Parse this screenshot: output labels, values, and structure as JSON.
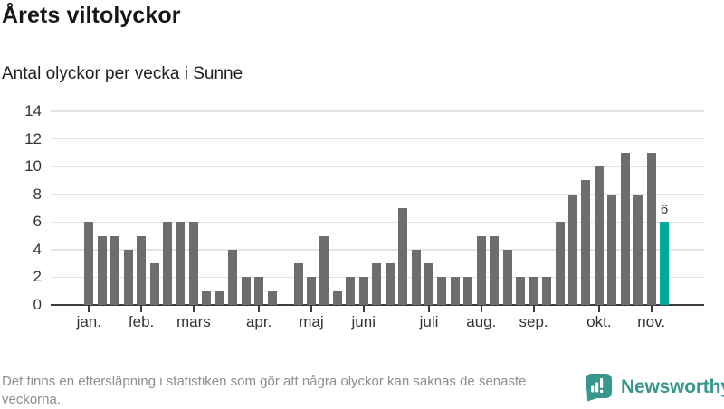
{
  "header": {
    "title": "Årets viltolyckor",
    "subtitle": "Antal olyckor per vecka i Sunne"
  },
  "footer": {
    "note": "Det finns en eftersläpning i statistiken som gör att några olyckor kan saknas de senaste veckorna.",
    "brand": "Newsworthy"
  },
  "colors": {
    "bar": "#6d6d6d",
    "highlight": "#00a79c",
    "brand_teal": "#38978d",
    "gridline": "#e4e4e4",
    "axis": "#3c3c3c",
    "footer_text": "#8d8d8d"
  },
  "chart_data": {
    "type": "bar",
    "title": "Årets viltolyckor",
    "subtitle": "Antal olyckor per vecka i Sunne",
    "x_description": "weeks of the year, January through November",
    "values": [
      6,
      5,
      5,
      4,
      5,
      3,
      6,
      6,
      6,
      1,
      1,
      4,
      2,
      2,
      1,
      0,
      3,
      2,
      5,
      1,
      2,
      2,
      3,
      3,
      7,
      4,
      3,
      2,
      2,
      2,
      5,
      5,
      4,
      2,
      2,
      2,
      6,
      8,
      9,
      10,
      8,
      11,
      8,
      11,
      6
    ],
    "month_ticks": [
      {
        "label": "jan.",
        "index": 0
      },
      {
        "label": "feb.",
        "index": 4
      },
      {
        "label": "mars",
        "index": 8
      },
      {
        "label": "apr.",
        "index": 13
      },
      {
        "label": "maj",
        "index": 17
      },
      {
        "label": "juni",
        "index": 21
      },
      {
        "label": "juli",
        "index": 26
      },
      {
        "label": "aug.",
        "index": 30
      },
      {
        "label": "sep.",
        "index": 34
      },
      {
        "label": "okt.",
        "index": 39
      },
      {
        "label": "nov.",
        "index": 43
      }
    ],
    "yticks": [
      0,
      2,
      4,
      6,
      8,
      10,
      12,
      14
    ],
    "ylim": [
      0,
      14
    ],
    "grid": true,
    "legend": false,
    "bar_color": "#6d6d6d",
    "highlight": {
      "index": 44,
      "value": 6,
      "label": "6",
      "color": "#00a79c"
    }
  }
}
